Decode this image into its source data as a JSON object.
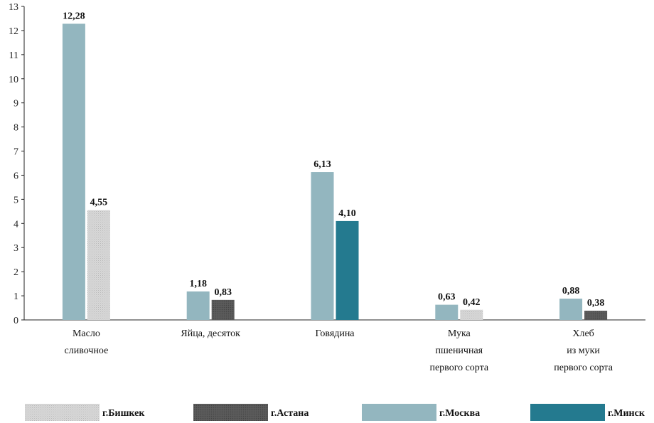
{
  "chart_data": {
    "type": "bar",
    "title": "",
    "xlabel": "",
    "ylabel": "",
    "ylim": [
      0,
      13
    ],
    "yticks": [
      "0",
      "1",
      "2",
      "3",
      "4",
      "5",
      "6",
      "7",
      "8",
      "9",
      "10",
      "11",
      "12",
      "13"
    ],
    "grid": false,
    "legend_position": "bottom",
    "categories": [
      [
        "Масло",
        "сливочное"
      ],
      [
        "Яйца,  десяток"
      ],
      [
        "Говядина"
      ],
      [
        "Мука",
        "пшеничная",
        "первого сорта"
      ],
      [
        "Хлеб",
        "из муки",
        "первого сорта"
      ]
    ],
    "series": [
      {
        "name": "г.Бишкек",
        "color": "#cfcfcf",
        "pattern": "dotted-light"
      },
      {
        "name": "г.Астана",
        "color": "#555555",
        "pattern": "dark-gray"
      },
      {
        "name": "г.Москва",
        "color": "#93b6bf",
        "pattern": "solid"
      },
      {
        "name": "г.Минск",
        "color": "#247a8f",
        "pattern": "solid"
      }
    ],
    "bars": [
      {
        "category": 0,
        "series": "г.Москва",
        "value": 12.28,
        "label": "12,28"
      },
      {
        "category": 0,
        "series": "г.Бишкек",
        "value": 4.55,
        "label": "4,55"
      },
      {
        "category": 1,
        "series": "г.Москва",
        "value": 1.18,
        "label": "1,18"
      },
      {
        "category": 1,
        "series": "г.Астана",
        "value": 0.83,
        "label": "0,83"
      },
      {
        "category": 2,
        "series": "г.Москва",
        "value": 6.13,
        "label": "6,13"
      },
      {
        "category": 2,
        "series": "г.Минск",
        "value": 4.1,
        "label": "4,10"
      },
      {
        "category": 3,
        "series": "г.Москва",
        "value": 0.63,
        "label": "0,63"
      },
      {
        "category": 3,
        "series": "г.Бишкек",
        "value": 0.42,
        "label": "0,42"
      },
      {
        "category": 4,
        "series": "г.Москва",
        "value": 0.88,
        "label": "0,88"
      },
      {
        "category": 4,
        "series": "г.Астана",
        "value": 0.38,
        "label": "0,38"
      }
    ]
  }
}
